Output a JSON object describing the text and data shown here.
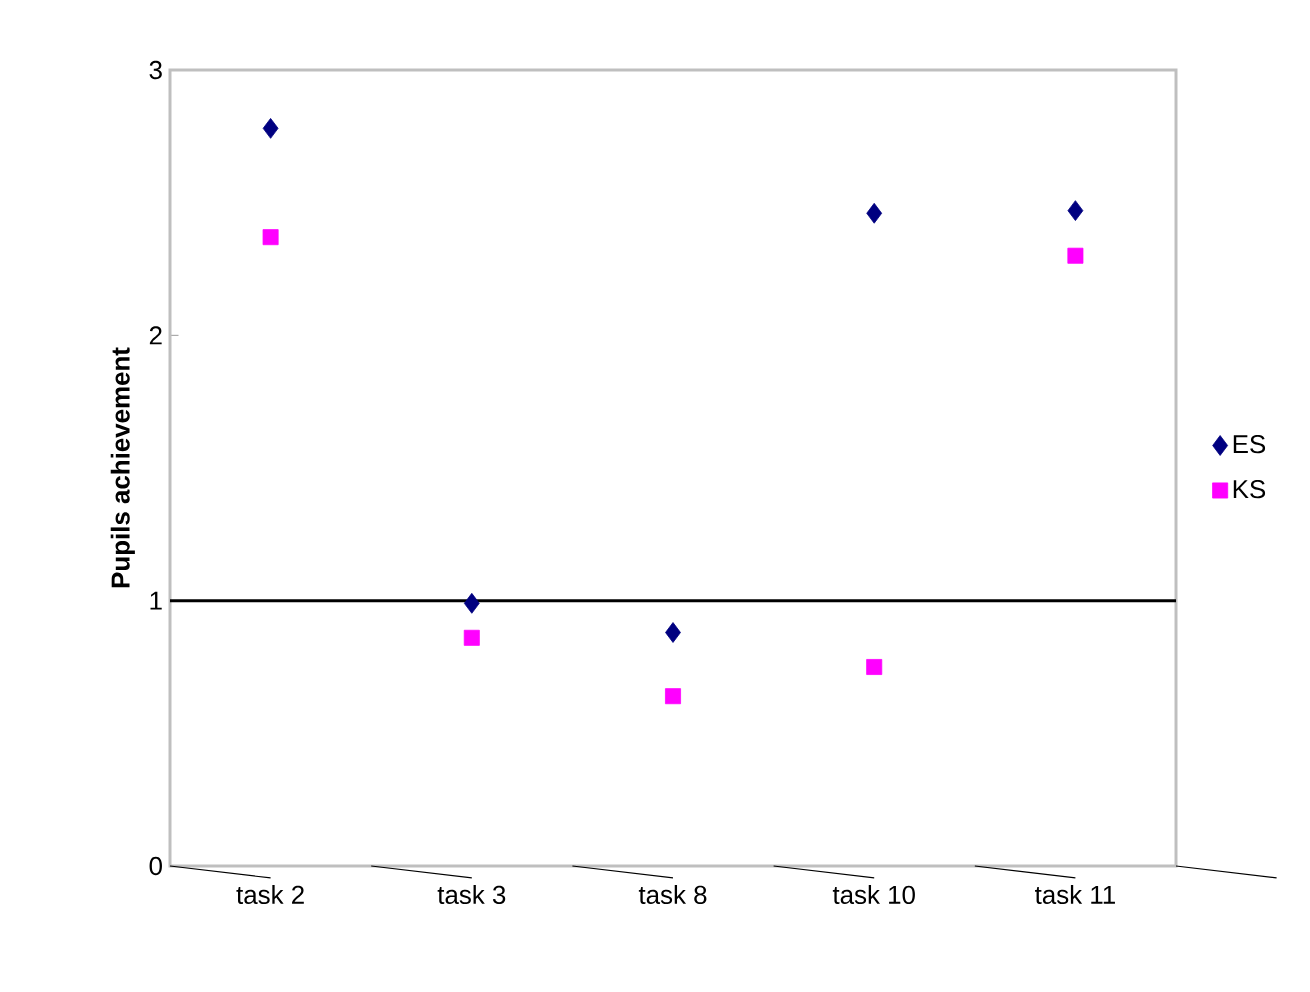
{
  "chart_data": {
    "type": "scatter",
    "ylabel": "Pupils achievement",
    "categories": [
      "task 2",
      "task 3",
      "task 8",
      "task 10",
      "task 11"
    ],
    "series": [
      {
        "name": "ES",
        "color": "#000080",
        "marker": "diamond",
        "values": [
          2.78,
          0.99,
          0.88,
          2.46,
          2.47
        ]
      },
      {
        "name": "KS",
        "color": "#ff00ff",
        "marker": "square",
        "values": [
          2.37,
          0.86,
          0.64,
          0.75,
          2.3
        ]
      }
    ],
    "ylim": [
      0,
      3
    ],
    "yticks": [
      0,
      1,
      2,
      3
    ],
    "grid": false,
    "legend": "right",
    "ref_lines": [
      {
        "axis": "y",
        "value": 1,
        "color": "#000000"
      }
    ]
  }
}
